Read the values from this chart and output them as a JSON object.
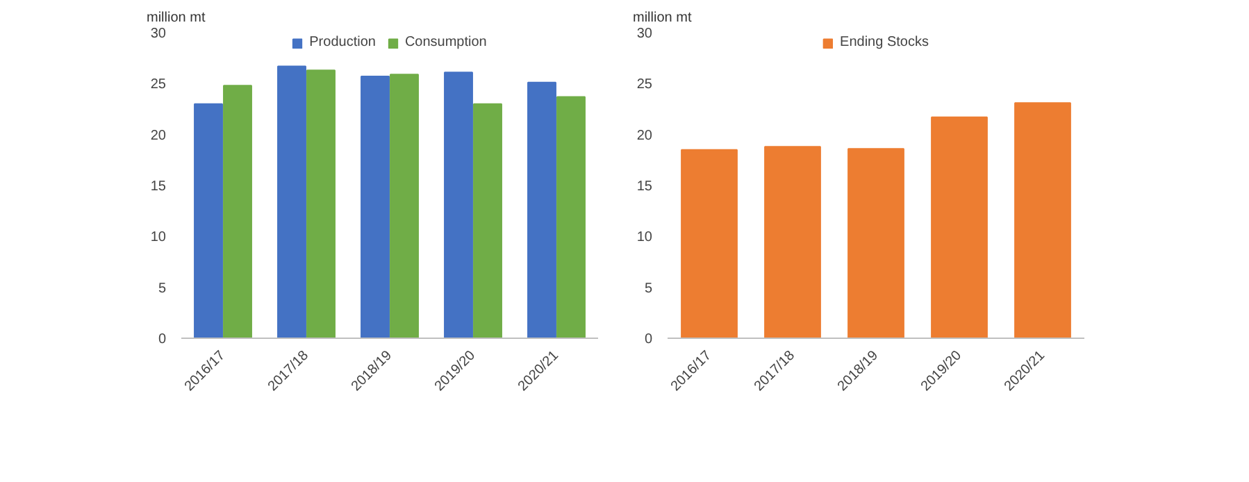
{
  "chart_data": [
    {
      "type": "bar",
      "ylabel": "million mt",
      "categories": [
        "2016/17",
        "2017/18",
        "2018/19",
        "2019/20",
        "2020/21"
      ],
      "ylim": [
        0,
        30
      ],
      "yticks": [
        0,
        5,
        10,
        15,
        20,
        25,
        30
      ],
      "grid": false,
      "legend": "top",
      "series": [
        {
          "name": "Production",
          "color": "#4472c4",
          "values": [
            23.0,
            26.7,
            25.7,
            26.1,
            25.1
          ]
        },
        {
          "name": "Consumption",
          "color": "#70ad47",
          "values": [
            24.8,
            26.3,
            25.9,
            23.0,
            23.7
          ]
        }
      ]
    },
    {
      "type": "bar",
      "ylabel": "million mt",
      "categories": [
        "2016/17",
        "2017/18",
        "2018/19",
        "2019/20",
        "2020/21"
      ],
      "ylim": [
        0,
        30
      ],
      "yticks": [
        0,
        5,
        10,
        15,
        20,
        25,
        30
      ],
      "grid": false,
      "legend": "top",
      "series": [
        {
          "name": "Ending Stocks",
          "color": "#ed7d31",
          "values": [
            18.5,
            18.8,
            18.6,
            21.7,
            23.1
          ]
        }
      ]
    }
  ]
}
